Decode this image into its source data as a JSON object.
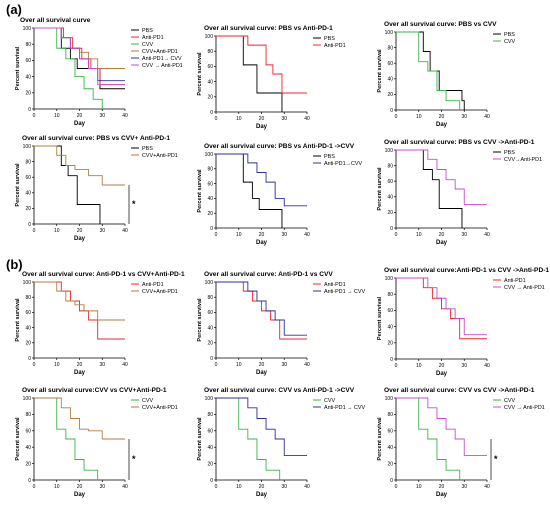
{
  "panel_labels": [
    "(a)",
    "(b)"
  ],
  "colors": {
    "PBS": "#000000",
    "Anti-PD1": "#e8242c",
    "CVV": "#39b54a",
    "CVV+Anti-PD1": "#b07d3c",
    "Anti-PD1→CVV": "#2e3192",
    "CVV→Anti-PD1": "#c74fc7"
  },
  "chart_data": [
    {
      "type": "line",
      "title": "Over all survival curve",
      "xlabel": "Day",
      "ylabel": "Percent survival",
      "xlim": [
        0,
        40
      ],
      "ylim": [
        0,
        100
      ],
      "xticks": [
        0,
        10,
        20,
        30,
        40
      ],
      "yticks": [
        0,
        20,
        40,
        60,
        80,
        100
      ],
      "legend": "top-right",
      "series": [
        {
          "name": "PBS",
          "color": "#000000",
          "x": [
            0,
            12,
            16,
            19,
            29,
            40
          ],
          "y": [
            100,
            75,
            62,
            50,
            25,
            25
          ]
        },
        {
          "name": "Anti-PD1",
          "color": "#e8242c",
          "x": [
            0,
            13,
            17,
            21,
            25,
            29,
            40
          ],
          "y": [
            100,
            88,
            75,
            62,
            50,
            30,
            30
          ]
        },
        {
          "name": "CVV",
          "color": "#39b54a",
          "x": [
            0,
            10,
            14,
            18,
            22,
            26,
            30
          ],
          "y": [
            100,
            75,
            62,
            40,
            25,
            12,
            0
          ]
        },
        {
          "name": "CVV+Anti-PD1",
          "color": "#b07d3c",
          "x": [
            0,
            12,
            16,
            20,
            24,
            28,
            40
          ],
          "y": [
            100,
            88,
            75,
            70,
            62,
            50,
            50
          ]
        },
        {
          "name": "Anti-PD1→ CVV",
          "color": "#2e3192",
          "x": [
            0,
            12,
            16,
            20,
            24,
            28,
            40
          ],
          "y": [
            100,
            88,
            75,
            62,
            50,
            35,
            35
          ]
        },
        {
          "name": "CVV → Anti-PD1",
          "color": "#c74fc7",
          "x": [
            0,
            12,
            16,
            20,
            24,
            28,
            40
          ],
          "y": [
            100,
            88,
            75,
            62,
            50,
            30,
            30
          ]
        }
      ]
    },
    {
      "type": "line",
      "title": "Over all survival curve: PBS vs Anti-PD-1",
      "xlabel": "Day",
      "ylabel": "Percent survival",
      "xlim": [
        0,
        40
      ],
      "ylim": [
        0,
        100
      ],
      "xticks": [
        0,
        10,
        20,
        30,
        40
      ],
      "yticks": [
        0,
        20,
        40,
        60,
        80,
        100
      ],
      "legend": "top-right",
      "series": [
        {
          "name": "PBS",
          "color": "#000000",
          "x": [
            0,
            12,
            18,
            29
          ],
          "y": [
            100,
            62,
            25,
            0
          ]
        },
        {
          "name": "Anti-PD1",
          "color": "#e8242c",
          "x": [
            0,
            14,
            22,
            25,
            29,
            40
          ],
          "y": [
            100,
            88,
            62,
            50,
            25,
            25
          ]
        }
      ]
    },
    {
      "type": "line",
      "title": "Over all survival curve: PBS vs CVV",
      "xlabel": "Day",
      "ylabel": "Percent survival",
      "xlim": [
        0,
        40
      ],
      "ylim": [
        0,
        100
      ],
      "xticks": [
        0,
        10,
        20,
        30,
        40
      ],
      "yticks": [
        0,
        20,
        40,
        60,
        80,
        100
      ],
      "legend": "top-right",
      "series": [
        {
          "name": "PBS",
          "color": "#000000",
          "x": [
            0,
            12,
            15,
            19,
            29,
            30
          ],
          "y": [
            100,
            75,
            50,
            25,
            12,
            0
          ]
        },
        {
          "name": "CVV",
          "color": "#39b54a",
          "x": [
            0,
            10,
            14,
            18,
            22,
            28
          ],
          "y": [
            100,
            62,
            50,
            25,
            12,
            0
          ]
        }
      ]
    },
    {
      "type": "line",
      "title": "Over all survival curve: PBS vs  CVV+ Anti-PD-1",
      "xlabel": "Day",
      "ylabel": "Percent survival",
      "xlim": [
        0,
        40
      ],
      "ylim": [
        0,
        100
      ],
      "xticks": [
        0,
        10,
        20,
        30,
        40
      ],
      "yticks": [
        0,
        20,
        40,
        60,
        80,
        100
      ],
      "legend": "top-right",
      "annotation": "*",
      "series": [
        {
          "name": "PBS",
          "color": "#000000",
          "x": [
            0,
            12,
            15,
            19,
            29
          ],
          "y": [
            100,
            75,
            62,
            25,
            0
          ]
        },
        {
          "name": "CVV+Anti-PD1",
          "color": "#b07d3c",
          "x": [
            0,
            10,
            14,
            18,
            24,
            30,
            40
          ],
          "y": [
            100,
            88,
            75,
            70,
            62,
            50,
            50
          ]
        }
      ]
    },
    {
      "type": "line",
      "title": "Over all survival curve: PBS vs Anti-PD-1 ->CVV",
      "xlabel": "Day",
      "ylabel": "Percent survival",
      "xlim": [
        0,
        40
      ],
      "ylim": [
        0,
        100
      ],
      "xticks": [
        0,
        10,
        20,
        30,
        40
      ],
      "yticks": [
        0,
        20,
        40,
        60,
        80,
        100
      ],
      "legend": "top-right",
      "series": [
        {
          "name": "PBS",
          "color": "#000000",
          "x": [
            0,
            12,
            16,
            19,
            29
          ],
          "y": [
            100,
            62,
            40,
            25,
            0
          ]
        },
        {
          "name": "Anti-PD1→CVV",
          "color": "#2e3192",
          "x": [
            0,
            14,
            18,
            22,
            26,
            30,
            40
          ],
          "y": [
            100,
            88,
            75,
            62,
            40,
            30,
            30
          ]
        }
      ]
    },
    {
      "type": "line",
      "title": "Over all survival curve: PBS vs CVV ->Anti-PD-1",
      "xlabel": "Day",
      "ylabel": "Percent survival",
      "xlim": [
        0,
        40
      ],
      "ylim": [
        0,
        100
      ],
      "xticks": [
        0,
        10,
        20,
        30,
        40
      ],
      "yticks": [
        0,
        20,
        40,
        60,
        80,
        100
      ],
      "legend": "top-right",
      "series": [
        {
          "name": "PBS",
          "color": "#000000",
          "x": [
            0,
            12,
            16,
            19,
            29
          ],
          "y": [
            100,
            75,
            62,
            25,
            0
          ]
        },
        {
          "name": "CVV→Anti-PD1",
          "color": "#c74fc7",
          "x": [
            0,
            14,
            18,
            22,
            26,
            30,
            40
          ],
          "y": [
            100,
            88,
            75,
            62,
            50,
            30,
            30
          ]
        }
      ]
    },
    {
      "type": "line",
      "title": "Over all survival curve: Anti-PD-1 vs CVV+Anti-PD-1",
      "xlabel": "Day",
      "ylabel": "Percent survival",
      "xlim": [
        0,
        40
      ],
      "ylim": [
        0,
        100
      ],
      "xticks": [
        0,
        10,
        20,
        30,
        40
      ],
      "yticks": [
        0,
        20,
        40,
        60,
        80,
        100
      ],
      "legend": "top-right",
      "series": [
        {
          "name": "Anti-PD1",
          "color": "#e8242c",
          "x": [
            0,
            12,
            16,
            20,
            24,
            28,
            40
          ],
          "y": [
            100,
            88,
            75,
            62,
            50,
            25,
            25
          ]
        },
        {
          "name": "CVV+Anti-PD1",
          "color": "#b07d3c",
          "x": [
            0,
            10,
            14,
            18,
            22,
            28,
            40
          ],
          "y": [
            100,
            88,
            75,
            70,
            62,
            50,
            50
          ]
        }
      ]
    },
    {
      "type": "line",
      "title": "Over all survival curve: Anti-PD-1 vs CVV",
      "xlabel": "Day",
      "ylabel": "Percent survival",
      "xlim": [
        0,
        40
      ],
      "ylim": [
        0,
        100
      ],
      "xticks": [
        0,
        10,
        20,
        30,
        40
      ],
      "yticks": [
        0,
        20,
        40,
        60,
        80,
        100
      ],
      "legend": "top-right",
      "series": [
        {
          "name": "Anti-PD1",
          "color": "#e8242c",
          "x": [
            0,
            12,
            16,
            20,
            24,
            28,
            40
          ],
          "y": [
            100,
            88,
            75,
            62,
            50,
            25,
            25
          ]
        },
        {
          "name": "Anti-PD1 → CVV",
          "color": "#2e3192",
          "x": [
            0,
            14,
            18,
            22,
            26,
            30,
            40
          ],
          "y": [
            100,
            88,
            75,
            62,
            50,
            30,
            30
          ]
        }
      ]
    },
    {
      "type": "line",
      "title": "Over all survival curve:Anti-PD-1 vs CVV ->Anti-PD-1",
      "xlabel": "Day",
      "ylabel": "Percent survival",
      "xlim": [
        0,
        40
      ],
      "ylim": [
        0,
        100
      ],
      "xticks": [
        0,
        10,
        20,
        30,
        40
      ],
      "yticks": [
        0,
        20,
        40,
        60,
        80,
        100
      ],
      "legend": "top-right",
      "series": [
        {
          "name": "Anti-PD1",
          "color": "#e8242c",
          "x": [
            0,
            12,
            16,
            20,
            24,
            28,
            40
          ],
          "y": [
            100,
            88,
            75,
            62,
            50,
            25,
            25
          ]
        },
        {
          "name": "CVV → Anti-PD1",
          "color": "#c74fc7",
          "x": [
            0,
            14,
            18,
            22,
            26,
            30,
            40
          ],
          "y": [
            100,
            88,
            75,
            62,
            50,
            30,
            30
          ]
        }
      ]
    },
    {
      "type": "line",
      "title": "Over all survival curve:CVV vs CVV+Anti-PD-1",
      "xlabel": "Day",
      "ylabel": "Percent survival",
      "xlim": [
        0,
        40
      ],
      "ylim": [
        0,
        100
      ],
      "xticks": [
        0,
        10,
        20,
        30,
        40
      ],
      "yticks": [
        0,
        20,
        40,
        60,
        80,
        100
      ],
      "legend": "top-right",
      "annotation": "*",
      "series": [
        {
          "name": "CVV",
          "color": "#39b54a",
          "x": [
            0,
            10,
            14,
            18,
            22,
            28
          ],
          "y": [
            100,
            62,
            50,
            25,
            12,
            0
          ]
        },
        {
          "name": "CVV+Anti-PD1",
          "color": "#b07d3c",
          "x": [
            0,
            12,
            16,
            20,
            24,
            30,
            40
          ],
          "y": [
            100,
            88,
            75,
            62,
            60,
            50,
            50
          ]
        }
      ]
    },
    {
      "type": "line",
      "title": "Over all survival curve: CVV vs Anti-PD-1 ->CVV",
      "xlabel": "Day",
      "ylabel": "Percent survival",
      "xlim": [
        0,
        40
      ],
      "ylim": [
        0,
        100
      ],
      "xticks": [
        0,
        10,
        20,
        30,
        40
      ],
      "yticks": [
        0,
        20,
        40,
        60,
        80,
        100
      ],
      "legend": "top-right",
      "series": [
        {
          "name": "CVV",
          "color": "#39b54a",
          "x": [
            0,
            10,
            14,
            18,
            22,
            28
          ],
          "y": [
            100,
            62,
            50,
            25,
            12,
            0
          ]
        },
        {
          "name": "Anti-PD1 → CVV",
          "color": "#2e3192",
          "x": [
            0,
            14,
            18,
            22,
            26,
            30,
            40
          ],
          "y": [
            100,
            88,
            75,
            62,
            50,
            30,
            30
          ]
        }
      ]
    },
    {
      "type": "line",
      "title": "Over all survival curve: CVV vs CVV ->Anti-PD-1",
      "xlabel": "Day",
      "ylabel": "Percent survival",
      "xlim": [
        0,
        40
      ],
      "ylim": [
        0,
        100
      ],
      "xticks": [
        0,
        10,
        20,
        30,
        40
      ],
      "yticks": [
        0,
        20,
        40,
        60,
        80,
        100
      ],
      "legend": "top-right",
      "annotation": "*",
      "series": [
        {
          "name": "CVV",
          "color": "#39b54a",
          "x": [
            0,
            10,
            14,
            18,
            22,
            28
          ],
          "y": [
            100,
            62,
            50,
            25,
            12,
            0
          ]
        },
        {
          "name": "CVV → Anti-PD1",
          "color": "#c74fc7",
          "x": [
            0,
            14,
            18,
            22,
            26,
            30,
            40
          ],
          "y": [
            100,
            88,
            75,
            62,
            50,
            30,
            30
          ]
        }
      ]
    }
  ]
}
